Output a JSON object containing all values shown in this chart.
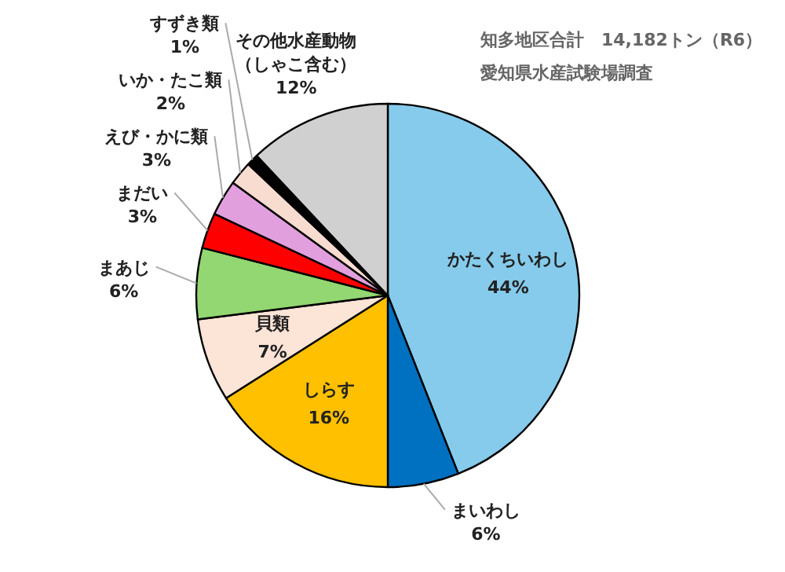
{
  "chart_data": {
    "type": "pie",
    "title": "知多地区合計　14,182トン（R6）",
    "subtitle": "愛知県水産試験場調査",
    "categories": [
      "かたくちいわし",
      "まいわし",
      "しらす",
      "貝類",
      "まあじ",
      "まだい",
      "えび・かに類",
      "いか・たこ類",
      "すずき類",
      "その他水産動物（しゃこ含む）"
    ],
    "values": [
      44,
      6,
      16,
      7,
      6,
      3,
      3,
      2,
      1,
      12
    ],
    "value_labels": [
      "44%",
      "6%",
      "16%",
      "7%",
      "6%",
      "3%",
      "3%",
      "2%",
      "1%",
      "12%"
    ],
    "colors": [
      "#86cbeb",
      "#0070c0",
      "#ffc000",
      "#fce4d6",
      "#92d771",
      "#ff0000",
      "#e29fdd",
      "#f9dcd0",
      "#000000",
      "#d0d0d0"
    ]
  }
}
